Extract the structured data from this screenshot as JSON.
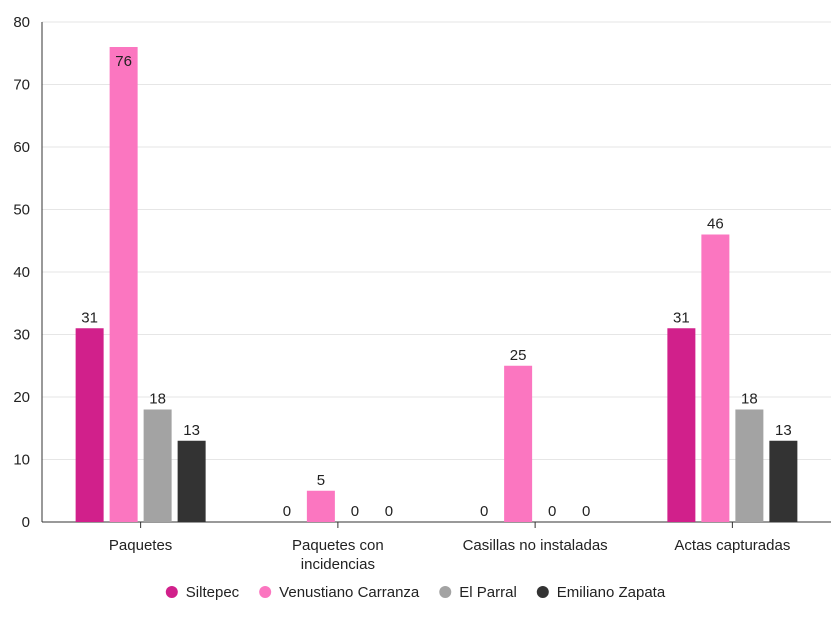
{
  "chart_data": {
    "type": "bar",
    "categories": [
      [
        "Paquetes"
      ],
      [
        "Paquetes con",
        "incidencias"
      ],
      [
        "Casillas no instaladas"
      ],
      [
        "Actas capturadas"
      ]
    ],
    "series": [
      {
        "name": "Siltepec",
        "color": "#d1208b",
        "values": [
          31,
          0,
          0,
          31
        ]
      },
      {
        "name": "Venustiano Carranza",
        "color": "#fb76c0",
        "values": [
          76,
          5,
          25,
          46
        ]
      },
      {
        "name": "El Parral",
        "color": "#a3a3a3",
        "values": [
          18,
          0,
          0,
          18
        ]
      },
      {
        "name": "Emiliano Zapata",
        "color": "#333333",
        "values": [
          13,
          0,
          0,
          13
        ]
      }
    ],
    "yticks": [
      0,
      10,
      20,
      30,
      40,
      50,
      60,
      70,
      80
    ],
    "ylim": [
      0,
      80
    ],
    "grid": true,
    "legend_position": "bottom-center"
  }
}
